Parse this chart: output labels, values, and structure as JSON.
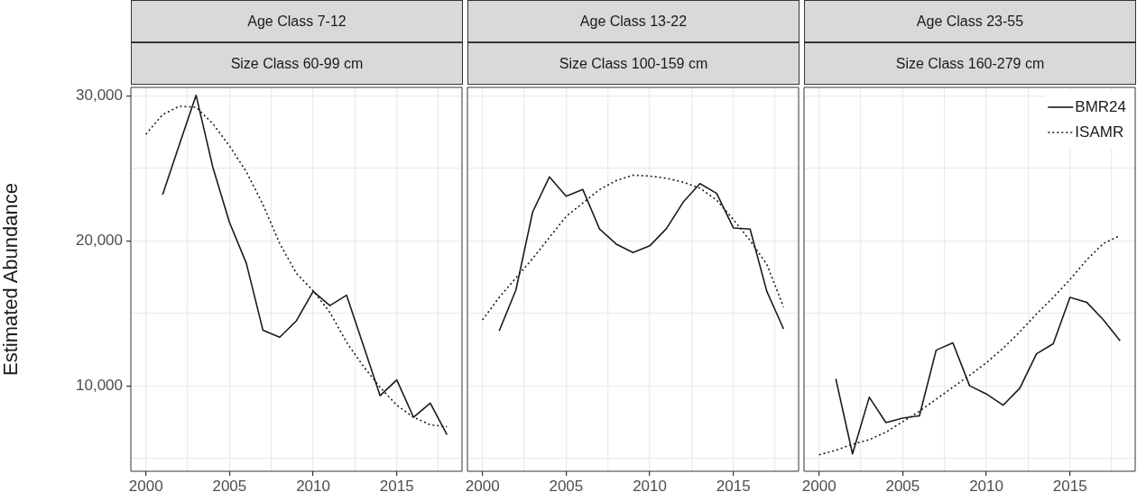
{
  "chart_data": [
    {
      "type": "line",
      "title": "Age Class 7-12",
      "subtitle": "Size Class 60-99 cm",
      "ylabel": "Estimated Abundance",
      "xlim": [
        1999.1,
        2018.9
      ],
      "xticks": [
        2000,
        {
          "value": 2002.5,
          "label": null
        },
        2005,
        {
          "value": 2007.5,
          "label": null
        },
        2010,
        {
          "value": 2012.5,
          "label": null
        },
        2015,
        {
          "value": 2017.5,
          "label": null
        }
      ],
      "ylim": [
        4100,
        30600
      ],
      "yticks": [
        {
          "value": 5000,
          "label": null
        },
        {
          "value": 10000,
          "label": "10,000"
        },
        {
          "value": 15000,
          "label": null
        },
        {
          "value": 20000,
          "label": "20,000"
        },
        {
          "value": 25000,
          "label": null
        },
        {
          "value": 30000,
          "label": "30,000"
        }
      ],
      "grid": true,
      "legend": false,
      "series": [
        {
          "color": "#1a1a1a",
          "line_style": "solid",
          "x": [
            2001,
            2002,
            2003,
            2004,
            2005,
            2006,
            2007,
            2008,
            2009,
            2010,
            2011,
            2012,
            2013,
            2014,
            2015,
            2016,
            2017,
            2018
          ],
          "values": [
            23200,
            26650,
            30060,
            25100,
            21270,
            18480,
            13830,
            13350,
            14490,
            16520,
            15540,
            16250,
            12790,
            9320,
            10410,
            7830,
            8800,
            6630
          ]
        },
        {
          "color": "#1a1a1a",
          "line_style": "dotted",
          "x": [
            2000,
            2001,
            2002,
            2003,
            2004,
            2005,
            2006,
            2007,
            2008,
            2009,
            2010,
            2011,
            2012,
            2013,
            2014,
            2015,
            2016,
            2017,
            2018
          ],
          "values": [
            27370,
            28720,
            29300,
            29230,
            28100,
            26550,
            24790,
            22510,
            19820,
            17760,
            16560,
            15070,
            13000,
            11350,
            9900,
            8660,
            7830,
            7310,
            7170
          ]
        }
      ]
    },
    {
      "type": "line",
      "title": "Age Class 13-22",
      "subtitle": "Size Class 100-159 cm",
      "xlim": [
        1999.1,
        2018.9
      ],
      "xticks": [
        2000,
        {
          "value": 2002.5,
          "label": null
        },
        2005,
        {
          "value": 2007.5,
          "label": null
        },
        2010,
        {
          "value": 2012.5,
          "label": null
        },
        2015,
        {
          "value": 2017.5,
          "label": null
        }
      ],
      "ylim": [
        4100,
        30600
      ],
      "yticks": [
        5000,
        10000,
        15000,
        20000,
        25000,
        30000
      ],
      "grid": true,
      "legend": false,
      "tick_labels": "x",
      "series": [
        {
          "color": "#1a1a1a",
          "line_style": "solid",
          "x": [
            2001,
            2002,
            2003,
            2004,
            2005,
            2006,
            2007,
            2008,
            2009,
            2010,
            2011,
            2012,
            2013,
            2014,
            2015,
            2016,
            2017,
            2018
          ],
          "values": [
            13790,
            16620,
            22000,
            24420,
            23090,
            23550,
            20820,
            19780,
            19200,
            19660,
            20860,
            22680,
            23960,
            23280,
            20900,
            20820,
            16520,
            13930
          ]
        },
        {
          "color": "#1a1a1a",
          "line_style": "dotted",
          "x": [
            2000,
            2001,
            2002,
            2003,
            2004,
            2005,
            2006,
            2007,
            2008,
            2009,
            2010,
            2011,
            2012,
            2013,
            2014,
            2015,
            2016,
            2017,
            2018
          ],
          "values": [
            14550,
            16100,
            17450,
            18790,
            20240,
            21690,
            22620,
            23550,
            24170,
            24540,
            24480,
            24330,
            24060,
            23650,
            22820,
            21480,
            20030,
            18380,
            15440
          ]
        }
      ]
    },
    {
      "type": "line",
      "title": "Age Class 23-55",
      "subtitle": "Size Class 160-279 cm",
      "xlim": [
        1999.1,
        2018.9
      ],
      "xticks": [
        2000,
        {
          "value": 2002.5,
          "label": null
        },
        2005,
        {
          "value": 2007.5,
          "label": null
        },
        2010,
        {
          "value": 2012.5,
          "label": null
        },
        2015,
        {
          "value": 2017.5,
          "label": null
        }
      ],
      "ylim": [
        4100,
        30600
      ],
      "yticks": [
        5000,
        10000,
        15000,
        20000,
        25000,
        30000
      ],
      "grid": true,
      "legend": "top right",
      "tick_labels": "x",
      "series": [
        {
          "name": "BMR24",
          "color": "#1a1a1a",
          "line_style": "solid",
          "x": [
            2001,
            2002,
            2003,
            2004,
            2005,
            2006,
            2007,
            2008,
            2009,
            2010,
            2011,
            2012,
            2013,
            2014,
            2015,
            2016,
            2017,
            2018
          ],
          "values": [
            10480,
            5300,
            9210,
            7460,
            7770,
            7930,
            12460,
            12960,
            10000,
            9440,
            8660,
            9830,
            12210,
            12900,
            16100,
            15770,
            14550,
            13100
          ]
        },
        {
          "name": "ISAMR",
          "color": "#1a1a1a",
          "line_style": "dotted",
          "x": [
            2000,
            2001,
            2002,
            2003,
            2004,
            2005,
            2006,
            2007,
            2008,
            2009,
            2010,
            2011,
            2012,
            2013,
            2014,
            2015,
            2016,
            2017,
            2018
          ],
          "values": [
            5240,
            5550,
            5970,
            6280,
            6800,
            7520,
            8240,
            9070,
            9900,
            10720,
            11590,
            12590,
            13720,
            14960,
            16100,
            17340,
            18690,
            19820,
            20380
          ]
        }
      ]
    }
  ]
}
